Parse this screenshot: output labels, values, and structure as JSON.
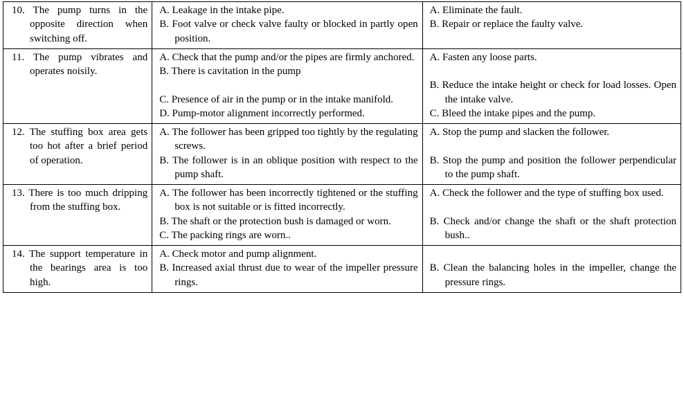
{
  "rows": [
    {
      "fault": "10. The pump turns in the opposite direction when switching off.",
      "causes": [
        "A.  Leakage in the intake pipe.",
        "B.  Foot valve or check valve faulty or blocked in partly open position."
      ],
      "remedies": [
        "A.  Eliminate the fault.",
        "B.  Repair or replace the faulty valve."
      ]
    },
    {
      "fault": "11. The pump vibrates and operates noisily.",
      "causes": [
        "A.  Check that the pump and/or the pipes are firmly anchored.",
        "B.  There is cavitation in the pump",
        "",
        "C.  Presence of air in the pump or in the intake manifold.",
        "D.  Pump-motor alignment incorrectly performed."
      ],
      "remedies": [
        "A.  Fasten any loose parts.",
        "",
        "B.  Reduce the intake height or check for load losses. Open the intake valve.",
        "C.  Bleed the intake pipes and the pump."
      ]
    },
    {
      "fault": "12. The stuffing box area gets too hot after a brief period of operation.",
      "causes": [
        "A.  The follower has been gripped too tightly by the regulating screws.",
        "B.  The follower is in an oblique position with respect to the pump shaft."
      ],
      "remedies": [
        "A.  Stop the pump and slacken the follower.",
        "",
        "B.  Stop the pump and position the follower perpendicular to the pump shaft."
      ]
    },
    {
      "fault": "13. There is too much dripping from the stuffing box.",
      "causes": [
        "A.  The follower has been incorrectly tightened or the stuffing box is not suitable or is fitted incorrectly.",
        "B.  The shaft or the protection bush is damaged or worn.",
        "C.  The packing rings are worn.."
      ],
      "remedies": [
        "A.  Check the follower and the type of stuffing box used.",
        "",
        "B.  Check and/or change the shaft or the shaft protection bush.."
      ]
    },
    {
      "fault": "14. The support temperature in the bearings area is too high.",
      "causes": [
        "A.  Check motor and pump alignment.",
        "B.  Increased axial thrust due to wear of the impeller pressure rings."
      ],
      "remedies": [
        "",
        "B.  Clean the balancing holes in the impeller, change the pressure rings."
      ]
    }
  ]
}
